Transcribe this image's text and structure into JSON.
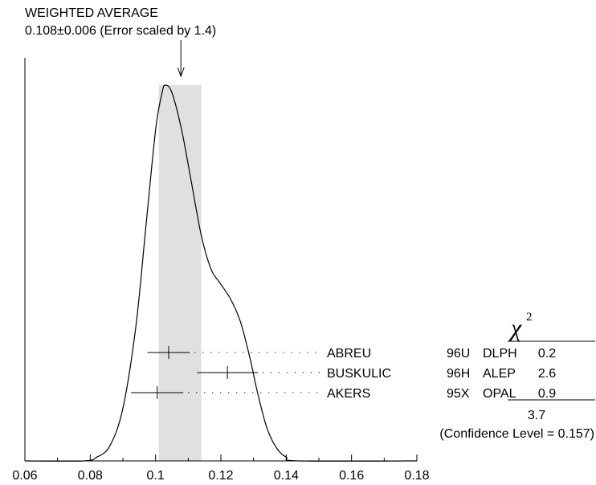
{
  "header": {
    "title": "WEIGHTED AVERAGE",
    "value_line": "0.108±0.006 (Error scaled by 1.4)"
  },
  "chart_data": {
    "type": "ideogram",
    "xlim": [
      0.06,
      0.18
    ],
    "x_ticks": [
      "0.06",
      "0.08",
      "0.1",
      "0.12",
      "0.14",
      "0.16",
      "0.18"
    ],
    "tick_values": [
      0.06,
      0.08,
      0.1,
      0.12,
      0.14,
      0.16,
      0.18
    ],
    "weighted_average": {
      "value": 0.108,
      "error": 0.006,
      "scale_factor": 1.4,
      "band": [
        0.101,
        0.114
      ]
    },
    "curve": [
      [
        0.06,
        0.0
      ],
      [
        0.078,
        0.0
      ],
      [
        0.082,
        0.01
      ],
      [
        0.086,
        0.04
      ],
      [
        0.09,
        0.14
      ],
      [
        0.094,
        0.36
      ],
      [
        0.097,
        0.62
      ],
      [
        0.1,
        0.88
      ],
      [
        0.102,
        0.98
      ],
      [
        0.103,
        1.0
      ],
      [
        0.105,
        0.98
      ],
      [
        0.108,
        0.88
      ],
      [
        0.111,
        0.74
      ],
      [
        0.114,
        0.6
      ],
      [
        0.117,
        0.51
      ],
      [
        0.12,
        0.47
      ],
      [
        0.123,
        0.43
      ],
      [
        0.126,
        0.37
      ],
      [
        0.129,
        0.27
      ],
      [
        0.131,
        0.19
      ],
      [
        0.134,
        0.09
      ],
      [
        0.137,
        0.035
      ],
      [
        0.14,
        0.01
      ],
      [
        0.144,
        0.0
      ],
      [
        0.18,
        0.0
      ]
    ],
    "measurements": [
      {
        "value": 0.104,
        "error": 0.0065,
        "author": "ABREU",
        "ref": "96U",
        "exp": "DLPH",
        "chi2": "0.2"
      },
      {
        "value": 0.122,
        "error": 0.0093,
        "author": "BUSKULIC",
        "ref": "96H",
        "exp": "ALEP",
        "chi2": "2.6"
      },
      {
        "value": 0.1005,
        "error": 0.008,
        "author": "AKERS",
        "ref": "95X",
        "exp": "OPAL",
        "chi2": "0.9"
      }
    ],
    "chi2_header": "χ",
    "chi2_exponent": "2",
    "chi2_total": "3.7",
    "confidence_level": "(Confidence Level = 0.157)"
  }
}
